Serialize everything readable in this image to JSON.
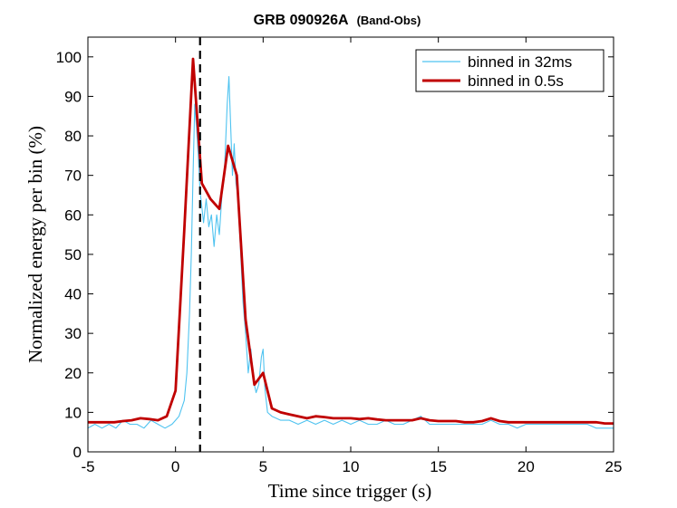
{
  "chart_data": {
    "type": "line",
    "title": "GRB 090926A",
    "title_suffix": "(Band-Obs)",
    "xlabel": "Time since trigger (s)",
    "ylabel": "Normalized energy per bin (%)",
    "xlim": [
      -5,
      25
    ],
    "ylim": [
      0,
      105
    ],
    "x_ticks": [
      -5,
      0,
      5,
      10,
      15,
      20,
      25
    ],
    "y_ticks": [
      0,
      10,
      20,
      30,
      40,
      50,
      60,
      70,
      80,
      90,
      100
    ],
    "grid": false,
    "legend_position": "top-right",
    "vline": {
      "x": 1.4,
      "style": "dashed",
      "color": "#000000"
    },
    "series": [
      {
        "name": "binned in 32ms",
        "color": "#4fc3f0",
        "x": [
          -5,
          -4.6,
          -4.2,
          -3.8,
          -3.4,
          -3.0,
          -2.6,
          -2.2,
          -1.8,
          -1.4,
          -1.0,
          -0.6,
          -0.2,
          0.0,
          0.2,
          0.35,
          0.5,
          0.65,
          0.8,
          0.9,
          1.0,
          1.1,
          1.2,
          1.3,
          1.4,
          1.5,
          1.6,
          1.75,
          1.9,
          2.05,
          2.2,
          2.35,
          2.5,
          2.65,
          2.8,
          2.95,
          3.05,
          3.15,
          3.25,
          3.35,
          3.45,
          3.55,
          3.7,
          3.85,
          4.0,
          4.15,
          4.3,
          4.45,
          4.6,
          4.75,
          4.9,
          5.0,
          5.1,
          5.25,
          5.5,
          6.0,
          6.5,
          7.0,
          7.5,
          8.0,
          8.5,
          9.0,
          9.5,
          10.0,
          10.5,
          11.0,
          11.5,
          12.0,
          12.5,
          13.0,
          13.5,
          14.0,
          14.5,
          15.0,
          15.5,
          16.0,
          16.5,
          17.0,
          17.5,
          18.0,
          18.5,
          19.0,
          19.5,
          20.0,
          20.5,
          21.0,
          21.5,
          22.0,
          22.5,
          23.0,
          23.5,
          24.0,
          24.5,
          25.0
        ],
        "y": [
          6,
          7,
          6,
          7,
          6,
          8,
          7,
          7,
          6,
          8,
          7,
          6,
          7,
          8,
          9,
          11,
          13,
          20,
          35,
          50,
          70,
          88,
          82,
          75,
          66,
          62,
          58,
          64,
          57,
          60,
          52,
          60,
          55,
          65,
          72,
          88,
          95,
          82,
          70,
          78,
          68,
          65,
          52,
          38,
          30,
          20,
          26,
          18,
          15,
          17,
          24,
          26,
          16,
          10,
          9,
          8,
          8,
          7,
          8,
          7,
          8,
          7,
          8,
          7,
          8,
          7,
          7,
          8,
          7,
          7,
          8,
          9,
          7,
          7,
          7,
          7,
          7,
          7,
          7,
          8,
          7,
          7,
          6,
          7,
          7,
          7,
          7,
          7,
          7,
          7,
          7,
          6,
          6,
          6
        ]
      },
      {
        "name": "binned in 0.5s",
        "color": "#c00000",
        "x": [
          -5,
          -4.5,
          -4,
          -3.5,
          -3,
          -2.5,
          -2,
          -1.5,
          -1,
          -0.5,
          0,
          0.5,
          1,
          1.5,
          2,
          2.5,
          3,
          3.5,
          4,
          4.5,
          5,
          5.5,
          6,
          6.5,
          7,
          7.5,
          8,
          8.5,
          9,
          9.5,
          10,
          10.5,
          11,
          11.5,
          12,
          12.5,
          13,
          13.5,
          14,
          14.5,
          15,
          15.5,
          16,
          16.5,
          17,
          17.5,
          18,
          18.5,
          19,
          19.5,
          20,
          20.5,
          21,
          21.5,
          22,
          22.5,
          23,
          23.5,
          24,
          24.5,
          25
        ],
        "y": [
          7.5,
          7.5,
          7.5,
          7.5,
          7.8,
          8.0,
          8.5,
          8.3,
          8.0,
          9.0,
          15.5,
          56.0,
          99.5,
          68.0,
          64.0,
          61.5,
          77.5,
          70.0,
          33.5,
          17.0,
          20.0,
          11.0,
          10.0,
          9.5,
          9.0,
          8.5,
          9.0,
          8.8,
          8.5,
          8.5,
          8.5,
          8.3,
          8.5,
          8.2,
          8.0,
          8.0,
          8.0,
          8.0,
          8.5,
          8.0,
          7.8,
          7.8,
          7.8,
          7.5,
          7.5,
          7.8,
          8.5,
          7.8,
          7.5,
          7.5,
          7.5,
          7.5,
          7.5,
          7.5,
          7.5,
          7.5,
          7.5,
          7.5,
          7.5,
          7.2,
          7.2
        ]
      }
    ]
  }
}
